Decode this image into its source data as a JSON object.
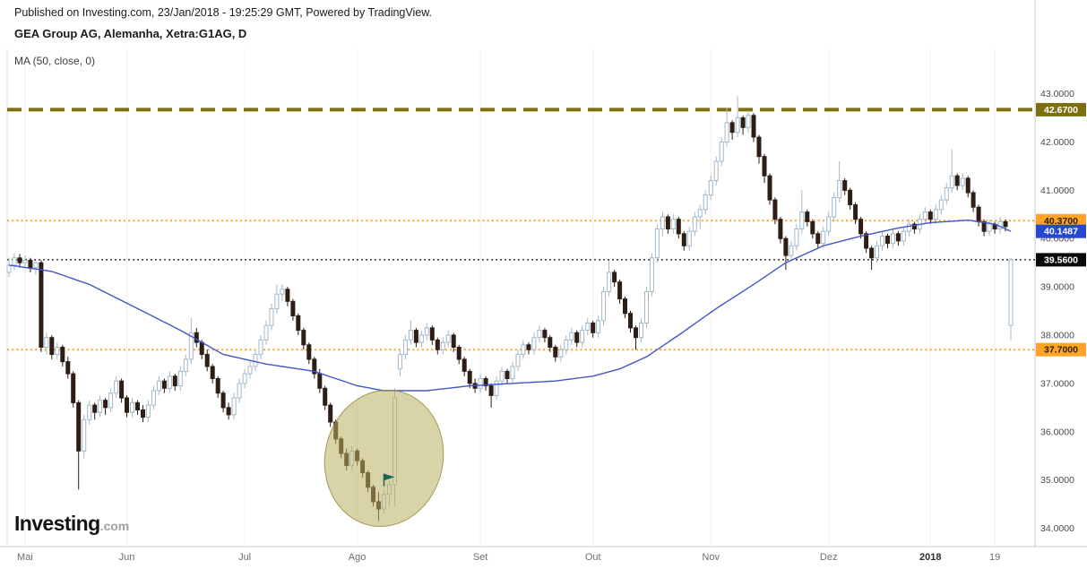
{
  "header": {
    "published": "Published on Investing.com, 23/Jan/2018 - 19:25:29 GMT, Powered by TradingView.",
    "title": "GEA Group AG, Alemanha, Xetra:G1AG, D",
    "indicator": "MA (50, close, 0)"
  },
  "logo": {
    "name": "Investing",
    "tld": ".com"
  },
  "chart_data": {
    "type": "candlestick",
    "title": "GEA Group AG, Alemanha, Xetra:G1AG, D",
    "symbol": "Xetra:G1AG",
    "interval": "D",
    "style": {
      "up_color": "#a2b7c9",
      "down_color": "#2e1c16",
      "grid": "vertical-faint",
      "background": "#ffffff"
    },
    "y_axis": {
      "price_top": 43.92,
      "price_bottom": 33.62,
      "ticks": [
        "43.0000",
        "42.0000",
        "41.0000",
        "40.0000",
        "39.0000",
        "38.0000",
        "37.0000",
        "36.0000",
        "35.0000",
        "34.0000"
      ]
    },
    "x_ticks": [
      {
        "index": 3,
        "label": "Mai",
        "bold": false
      },
      {
        "index": 22,
        "label": "Jun",
        "bold": false
      },
      {
        "index": 44,
        "label": "Jul",
        "bold": false
      },
      {
        "index": 65,
        "label": "Ago",
        "bold": false
      },
      {
        "index": 88,
        "label": "Set",
        "bold": false
      },
      {
        "index": 109,
        "label": "Out",
        "bold": false
      },
      {
        "index": 131,
        "label": "Nov",
        "bold": false
      },
      {
        "index": 153,
        "label": "Dez",
        "bold": false
      },
      {
        "index": 172,
        "label": "2018",
        "bold": true
      },
      {
        "index": 184,
        "label": "19",
        "bold": false
      }
    ],
    "h_lines": [
      {
        "value": 42.67,
        "label": "42.6700",
        "color": "#7d6f10",
        "badge_bg": "#7d6f10",
        "badge_text": "#ffffff",
        "style": "dashed",
        "width": 4,
        "dash": "16,8"
      },
      {
        "value": 40.37,
        "label": "40.3700",
        "color": "#ffa11b",
        "badge_bg": "#ffa426",
        "badge_text": "#2b1f00",
        "style": "dotted",
        "width": 2,
        "dash": "2,3.2"
      },
      {
        "value": 39.56,
        "label": "39.5600",
        "color": "#0a0a0a",
        "badge_bg": "#0a0a0a",
        "badge_text": "#ffffff",
        "style": "dotted",
        "width": 1.2,
        "dash": "2,3"
      },
      {
        "value": 37.7,
        "label": "37.7000",
        "color": "#ffa11b",
        "badge_bg": "#ffa426",
        "badge_text": "#2b1f00",
        "style": "dotted",
        "width": 2,
        "dash": "2,3.2"
      }
    ],
    "ma50": {
      "label": "MA (50, close, 0)",
      "color": "#4156c8",
      "last_value": 40.1487,
      "badge": {
        "label": "40.1487",
        "bg": "#2647d0",
        "text": "#ffffff"
      },
      "keyframes": [
        [
          0,
          39.45
        ],
        [
          8,
          39.32
        ],
        [
          15,
          39.05
        ],
        [
          24,
          38.55
        ],
        [
          32,
          38.1
        ],
        [
          40,
          37.6
        ],
        [
          48,
          37.4
        ],
        [
          57,
          37.25
        ],
        [
          65,
          36.95
        ],
        [
          70,
          36.85
        ],
        [
          78,
          36.85
        ],
        [
          86,
          36.95
        ],
        [
          94,
          37.0
        ],
        [
          102,
          37.05
        ],
        [
          109,
          37.15
        ],
        [
          114,
          37.3
        ],
        [
          119,
          37.55
        ],
        [
          125,
          38.0
        ],
        [
          132,
          38.55
        ],
        [
          139,
          39.05
        ],
        [
          145,
          39.5
        ],
        [
          152,
          39.85
        ],
        [
          159,
          40.05
        ],
        [
          166,
          40.22
        ],
        [
          172,
          40.33
        ],
        [
          179,
          40.38
        ],
        [
          184,
          40.3
        ],
        [
          187,
          40.15
        ]
      ]
    },
    "annotations": {
      "ellipse": {
        "center_index": 70,
        "center_price": 35.45,
        "rx_days": 11,
        "ry_price": 1.42,
        "rotation_deg": 12,
        "fill": "#b9b160",
        "fill_opacity": 0.55,
        "stroke": "#8e8738"
      },
      "flag": {
        "index": 70,
        "price": 35.0,
        "color": "#206655",
        "name": "flag-marker"
      }
    },
    "candles": [
      [
        39.3,
        39.6,
        39.2,
        39.45
      ],
      [
        39.45,
        39.7,
        39.35,
        39.6
      ],
      [
        39.6,
        39.68,
        39.4,
        39.5
      ],
      [
        39.5,
        39.65,
        39.42,
        39.55
      ],
      [
        39.55,
        39.6,
        39.3,
        39.4
      ],
      [
        39.4,
        39.55,
        39.25,
        39.5
      ],
      [
        39.5,
        39.55,
        37.65,
        37.75
      ],
      [
        37.75,
        38.05,
        37.6,
        37.95
      ],
      [
        37.95,
        38.0,
        37.5,
        37.6
      ],
      [
        37.6,
        37.85,
        37.5,
        37.75
      ],
      [
        37.75,
        37.8,
        37.35,
        37.45
      ],
      [
        37.45,
        37.55,
        37.1,
        37.2
      ],
      [
        37.2,
        37.25,
        36.5,
        36.6
      ],
      [
        36.6,
        36.65,
        34.8,
        35.6
      ],
      [
        35.6,
        36.35,
        35.45,
        36.25
      ],
      [
        36.25,
        36.65,
        36.15,
        36.55
      ],
      [
        36.55,
        36.6,
        36.25,
        36.4
      ],
      [
        36.4,
        36.75,
        36.3,
        36.65
      ],
      [
        36.65,
        36.7,
        36.35,
        36.5
      ],
      [
        36.5,
        36.9,
        36.4,
        36.8
      ],
      [
        36.8,
        37.15,
        36.7,
        37.05
      ],
      [
        37.05,
        37.1,
        36.6,
        36.7
      ],
      [
        36.7,
        36.75,
        36.3,
        36.4
      ],
      [
        36.4,
        36.7,
        36.3,
        36.6
      ],
      [
        36.6,
        36.65,
        36.35,
        36.45
      ],
      [
        36.45,
        36.55,
        36.2,
        36.3
      ],
      [
        36.3,
        36.65,
        36.2,
        36.55
      ],
      [
        36.55,
        36.95,
        36.45,
        36.85
      ],
      [
        36.85,
        37.15,
        36.75,
        37.05
      ],
      [
        37.05,
        37.1,
        36.8,
        36.9
      ],
      [
        36.9,
        37.25,
        36.8,
        37.15
      ],
      [
        37.15,
        37.2,
        36.85,
        36.95
      ],
      [
        36.95,
        37.35,
        36.85,
        37.25
      ],
      [
        37.25,
        37.6,
        37.15,
        37.5
      ],
      [
        37.5,
        38.35,
        37.4,
        38.05
      ],
      [
        38.05,
        38.15,
        37.75,
        37.85
      ],
      [
        37.85,
        37.9,
        37.5,
        37.6
      ],
      [
        37.6,
        37.7,
        37.25,
        37.35
      ],
      [
        37.35,
        37.4,
        37.0,
        37.1
      ],
      [
        37.1,
        37.15,
        36.7,
        36.8
      ],
      [
        36.8,
        36.85,
        36.4,
        36.5
      ],
      [
        36.5,
        36.6,
        36.25,
        36.35
      ],
      [
        36.35,
        36.8,
        36.25,
        36.7
      ],
      [
        36.7,
        37.1,
        36.6,
        37.0
      ],
      [
        37.0,
        37.3,
        36.9,
        37.2
      ],
      [
        37.2,
        37.45,
        37.1,
        37.35
      ],
      [
        37.35,
        37.7,
        37.25,
        37.6
      ],
      [
        37.6,
        38.0,
        37.5,
        37.9
      ],
      [
        37.9,
        38.3,
        37.8,
        38.2
      ],
      [
        38.2,
        38.65,
        38.1,
        38.55
      ],
      [
        38.55,
        39.05,
        38.45,
        38.85
      ],
      [
        38.85,
        39.05,
        38.7,
        38.95
      ],
      [
        38.95,
        39.0,
        38.6,
        38.7
      ],
      [
        38.7,
        38.75,
        38.3,
        38.4
      ],
      [
        38.4,
        38.45,
        38.0,
        38.1
      ],
      [
        38.1,
        38.15,
        37.7,
        37.8
      ],
      [
        37.8,
        37.85,
        37.4,
        37.5
      ],
      [
        37.5,
        37.55,
        37.1,
        37.2
      ],
      [
        37.2,
        37.3,
        36.8,
        36.9
      ],
      [
        36.9,
        36.95,
        36.45,
        36.55
      ],
      [
        36.55,
        36.6,
        36.1,
        36.2
      ],
      [
        36.2,
        36.25,
        35.75,
        35.85
      ],
      [
        35.85,
        35.9,
        35.45,
        35.55
      ],
      [
        35.55,
        35.65,
        35.2,
        35.3
      ],
      [
        35.3,
        35.7,
        35.2,
        35.6
      ],
      [
        35.6,
        35.65,
        35.3,
        35.4
      ],
      [
        35.4,
        35.45,
        35.05,
        35.15
      ],
      [
        35.15,
        35.2,
        34.75,
        34.85
      ],
      [
        34.85,
        34.9,
        34.45,
        34.55
      ],
      [
        34.55,
        34.75,
        34.15,
        34.4
      ],
      [
        34.4,
        34.8,
        34.3,
        34.7
      ],
      [
        34.7,
        35.0,
        34.45,
        34.9
      ],
      [
        34.9,
        36.9,
        34.45,
        36.7
      ],
      [
        37.3,
        37.7,
        37.15,
        37.6
      ],
      [
        37.6,
        38.0,
        37.5,
        37.9
      ],
      [
        37.9,
        38.3,
        37.8,
        38.1
      ],
      [
        38.1,
        38.15,
        37.75,
        37.85
      ],
      [
        37.85,
        38.1,
        37.75,
        38.0
      ],
      [
        38.0,
        38.25,
        37.9,
        38.15
      ],
      [
        38.15,
        38.2,
        37.8,
        37.9
      ],
      [
        37.9,
        37.95,
        37.6,
        37.7
      ],
      [
        37.7,
        37.95,
        37.6,
        37.85
      ],
      [
        37.85,
        38.1,
        37.75,
        38.0
      ],
      [
        38.0,
        38.05,
        37.65,
        37.75
      ],
      [
        37.75,
        37.8,
        37.4,
        37.5
      ],
      [
        37.5,
        37.55,
        37.15,
        37.25
      ],
      [
        37.25,
        37.3,
        36.9,
        37.0
      ],
      [
        37.0,
        37.1,
        36.8,
        36.9
      ],
      [
        36.9,
        37.2,
        36.8,
        37.1
      ],
      [
        37.1,
        37.15,
        36.85,
        36.95
      ],
      [
        36.95,
        37.0,
        36.5,
        36.75
      ],
      [
        36.75,
        37.15,
        36.65,
        37.05
      ],
      [
        37.05,
        37.35,
        36.95,
        37.25
      ],
      [
        37.25,
        37.3,
        37.0,
        37.1
      ],
      [
        37.1,
        37.45,
        37.0,
        37.35
      ],
      [
        37.35,
        37.7,
        37.25,
        37.6
      ],
      [
        37.6,
        37.9,
        37.5,
        37.8
      ],
      [
        37.8,
        37.85,
        37.6,
        37.7
      ],
      [
        37.7,
        38.05,
        37.6,
        37.95
      ],
      [
        37.95,
        38.2,
        37.85,
        38.1
      ],
      [
        38.1,
        38.15,
        37.85,
        37.95
      ],
      [
        37.95,
        38.0,
        37.65,
        37.75
      ],
      [
        37.75,
        37.8,
        37.45,
        37.55
      ],
      [
        37.55,
        37.8,
        37.45,
        37.7
      ],
      [
        37.7,
        38.0,
        37.6,
        37.9
      ],
      [
        37.9,
        38.15,
        37.8,
        38.05
      ],
      [
        38.05,
        38.1,
        37.75,
        37.85
      ],
      [
        37.85,
        38.2,
        37.75,
        38.1
      ],
      [
        38.1,
        38.35,
        38.0,
        38.25
      ],
      [
        38.25,
        38.3,
        37.95,
        38.05
      ],
      [
        38.05,
        38.4,
        37.95,
        38.3
      ],
      [
        38.3,
        39.0,
        38.2,
        38.9
      ],
      [
        38.9,
        39.55,
        38.8,
        39.3
      ],
      [
        39.3,
        39.35,
        39.0,
        39.1
      ],
      [
        39.1,
        39.15,
        38.65,
        38.75
      ],
      [
        38.75,
        38.8,
        38.35,
        38.45
      ],
      [
        38.45,
        38.5,
        38.05,
        38.15
      ],
      [
        38.15,
        38.2,
        37.7,
        37.95
      ],
      [
        37.95,
        38.35,
        37.85,
        38.25
      ],
      [
        38.25,
        39.0,
        38.15,
        38.9
      ],
      [
        38.9,
        39.7,
        38.8,
        39.6
      ],
      [
        39.6,
        40.3,
        39.5,
        40.2
      ],
      [
        40.2,
        40.55,
        40.05,
        40.45
      ],
      [
        40.45,
        40.5,
        40.1,
        40.2
      ],
      [
        40.2,
        40.5,
        40.1,
        40.4
      ],
      [
        40.4,
        40.45,
        40.0,
        40.1
      ],
      [
        40.1,
        40.15,
        39.75,
        39.85
      ],
      [
        39.85,
        40.25,
        39.75,
        40.15
      ],
      [
        40.15,
        40.55,
        40.05,
        40.45
      ],
      [
        40.45,
        40.7,
        40.2,
        40.6
      ],
      [
        40.6,
        41.0,
        40.5,
        40.9
      ],
      [
        40.9,
        41.3,
        40.8,
        41.2
      ],
      [
        41.2,
        41.7,
        41.1,
        41.6
      ],
      [
        41.6,
        42.1,
        41.5,
        42.0
      ],
      [
        42.0,
        42.7,
        41.9,
        42.4
      ],
      [
        42.4,
        42.45,
        42.05,
        42.2
      ],
      [
        42.2,
        42.95,
        42.1,
        42.5
      ],
      [
        42.5,
        42.55,
        42.15,
        42.3
      ],
      [
        42.3,
        42.65,
        42.2,
        42.55
      ],
      [
        42.55,
        42.6,
        42.0,
        42.1
      ],
      [
        42.1,
        42.15,
        41.55,
        41.7
      ],
      [
        41.7,
        41.75,
        41.15,
        41.3
      ],
      [
        41.3,
        41.35,
        40.7,
        40.8
      ],
      [
        40.8,
        40.85,
        40.3,
        40.4
      ],
      [
        40.4,
        40.45,
        39.9,
        40.0
      ],
      [
        40.0,
        40.05,
        39.35,
        39.65
      ],
      [
        39.65,
        39.95,
        39.55,
        39.85
      ],
      [
        39.85,
        40.3,
        39.75,
        40.2
      ],
      [
        40.2,
        41.0,
        40.1,
        40.55
      ],
      [
        40.55,
        40.6,
        40.25,
        40.35
      ],
      [
        40.35,
        40.4,
        40.0,
        40.1
      ],
      [
        40.1,
        40.15,
        39.8,
        39.9
      ],
      [
        39.9,
        40.25,
        39.8,
        40.15
      ],
      [
        40.15,
        40.55,
        40.05,
        40.45
      ],
      [
        40.45,
        40.95,
        40.35,
        40.85
      ],
      [
        40.85,
        41.6,
        40.75,
        41.2
      ],
      [
        41.2,
        41.25,
        40.9,
        41.0
      ],
      [
        41.0,
        41.05,
        40.6,
        40.7
      ],
      [
        40.7,
        40.75,
        40.3,
        40.4
      ],
      [
        40.4,
        40.45,
        40.0,
        40.1
      ],
      [
        40.1,
        40.15,
        39.7,
        39.8
      ],
      [
        39.8,
        39.85,
        39.35,
        39.6
      ],
      [
        39.6,
        39.95,
        39.5,
        39.85
      ],
      [
        39.85,
        40.15,
        39.75,
        40.05
      ],
      [
        40.05,
        40.1,
        39.8,
        39.9
      ],
      [
        39.9,
        40.2,
        39.8,
        40.1
      ],
      [
        40.1,
        40.15,
        39.85,
        39.95
      ],
      [
        39.95,
        40.25,
        39.85,
        40.15
      ],
      [
        40.15,
        40.4,
        40.05,
        40.3
      ],
      [
        40.3,
        40.35,
        40.1,
        40.2
      ],
      [
        40.2,
        40.5,
        40.1,
        40.4
      ],
      [
        40.4,
        40.65,
        40.3,
        40.55
      ],
      [
        40.55,
        40.6,
        40.3,
        40.4
      ],
      [
        40.4,
        40.7,
        40.3,
        40.6
      ],
      [
        40.6,
        40.9,
        40.5,
        40.8
      ],
      [
        40.8,
        41.15,
        40.7,
        41.05
      ],
      [
        41.05,
        41.85,
        40.95,
        41.3
      ],
      [
        41.3,
        41.35,
        41.0,
        41.1
      ],
      [
        41.1,
        41.35,
        41.0,
        41.25
      ],
      [
        41.25,
        41.3,
        40.85,
        40.95
      ],
      [
        40.95,
        41.0,
        40.55,
        40.65
      ],
      [
        40.65,
        40.7,
        40.25,
        40.35
      ],
      [
        40.35,
        40.4,
        40.05,
        40.15
      ],
      [
        40.15,
        40.4,
        40.05,
        40.3
      ],
      [
        40.3,
        40.35,
        40.1,
        40.2
      ],
      [
        40.2,
        40.45,
        40.1,
        40.35
      ],
      [
        40.35,
        40.4,
        40.15,
        40.25
      ],
      [
        38.2,
        39.6,
        37.9,
        39.56
      ]
    ]
  }
}
